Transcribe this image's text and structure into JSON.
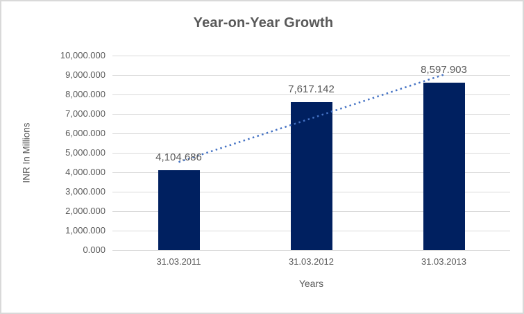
{
  "chart": {
    "background": "#FFFFFF",
    "border_color": "#D9D9D9"
  },
  "chart_data": {
    "type": "bar",
    "title": "Year-on-Year Growth",
    "xlabel": "Years",
    "ylabel": "INR In Millions",
    "categories": [
      "31.03.2011",
      "31.03.2012",
      "31.03.2013"
    ],
    "values": [
      4104.686,
      7617.142,
      8597.903
    ],
    "value_labels": [
      "4,104.686",
      "7,617.142",
      "8,597.903"
    ],
    "ylim": [
      0,
      10000
    ],
    "y_tick_step": 1000,
    "y_tick_labels_top_to_bottom": [
      "10,000.000",
      "9,000.000",
      "8,000.000",
      "7,000.000",
      "6,000.000",
      "5,000.000",
      "4,000.000",
      "3,000.000",
      "2,000.000",
      "1,000.000",
      "0.000"
    ],
    "grid": true,
    "legend_position": "none",
    "trendline": {
      "type": "linear",
      "style": "dotted"
    },
    "colors": {
      "bar": "#002060",
      "trendline": "#4472C4",
      "gridline": "#D9D9D9",
      "title_text": "#595959",
      "axis_text": "#595959",
      "data_label_text": "#595959"
    }
  }
}
